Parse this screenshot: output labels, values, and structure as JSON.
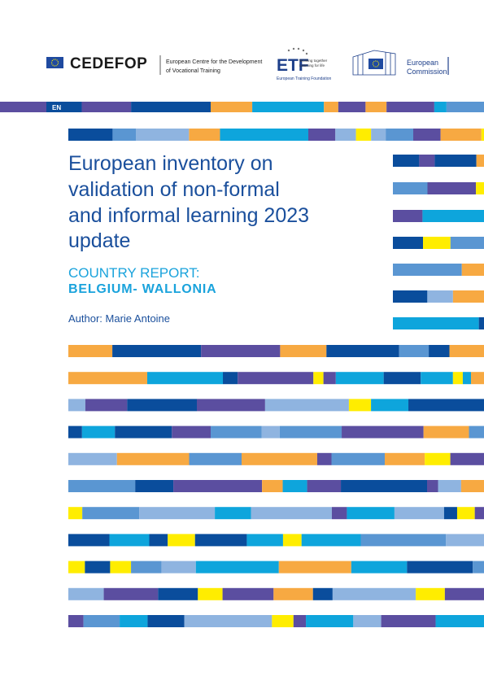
{
  "header": {
    "cedefop_logo": "CEDEFOP",
    "cedefop_name_line1": "European Centre for the Development",
    "cedefop_name_line2": "of Vocational Training",
    "etf_logo": "ETF",
    "etf_tagline_line1": "Working together",
    "etf_tagline_line2": "Learning for life",
    "etf_name": "European Training Foundation",
    "ec_line1": "European",
    "ec_line2": "Commission"
  },
  "language": "EN",
  "title_lines": [
    "European inventory on",
    "validation of non-formal",
    "and informal learning 2023",
    "update"
  ],
  "subtitle": "COUNTRY REPORT:",
  "country": "BELGIUM- WALLONIA",
  "author": "Author: Marie Antoine"
}
